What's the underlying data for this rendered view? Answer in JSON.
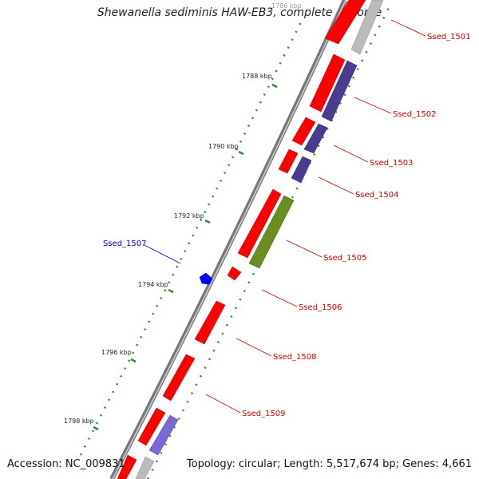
{
  "title": "Shewanella sediminis HAW-EB3, complete genome",
  "footer": {
    "accession": "Accession: NC_009831",
    "topology": "Topology: circular; Length: 5,517,674 bp; Genes: 4,661"
  },
  "ticks": [
    {
      "label": "1786 kbp",
      "kbp": 1786
    },
    {
      "label": "1788 kbp",
      "kbp": 1788
    },
    {
      "label": "1790 kbp",
      "kbp": 1790
    },
    {
      "label": "1792 kbp",
      "kbp": 1792
    },
    {
      "label": "1794 kbp",
      "kbp": 1794
    },
    {
      "label": "1796 kbp",
      "kbp": 1796
    },
    {
      "label": "1798 kbp",
      "kbp": 1798
    }
  ],
  "genes": [
    {
      "label": "Ssed_1501",
      "color": "#cc0000"
    },
    {
      "label": "Ssed_1502",
      "color": "#cc0000"
    },
    {
      "label": "Ssed_1503",
      "color": "#cc0000"
    },
    {
      "label": "Ssed_1504",
      "color": "#cc0000"
    },
    {
      "label": "Ssed_1505",
      "color": "#cc0000"
    },
    {
      "label": "Ssed_1506",
      "color": "#cc0000"
    },
    {
      "label": "Ssed_1507",
      "color": "#0000cc"
    },
    {
      "label": "Ssed_1508",
      "color": "#cc0000"
    },
    {
      "label": "Ssed_1509",
      "color": "#cc0000"
    }
  ],
  "colors": {
    "forward_cds": "#ff0000",
    "cog_purple": "#4a3d8f",
    "cog_light_purple": "#7b68d8",
    "cog_olive": "#6b8e23",
    "cog_grey": "#bbbbbb",
    "blue_feature": "#0000ff",
    "backbone": "#777777",
    "tick_green": "#2e8b2e"
  }
}
